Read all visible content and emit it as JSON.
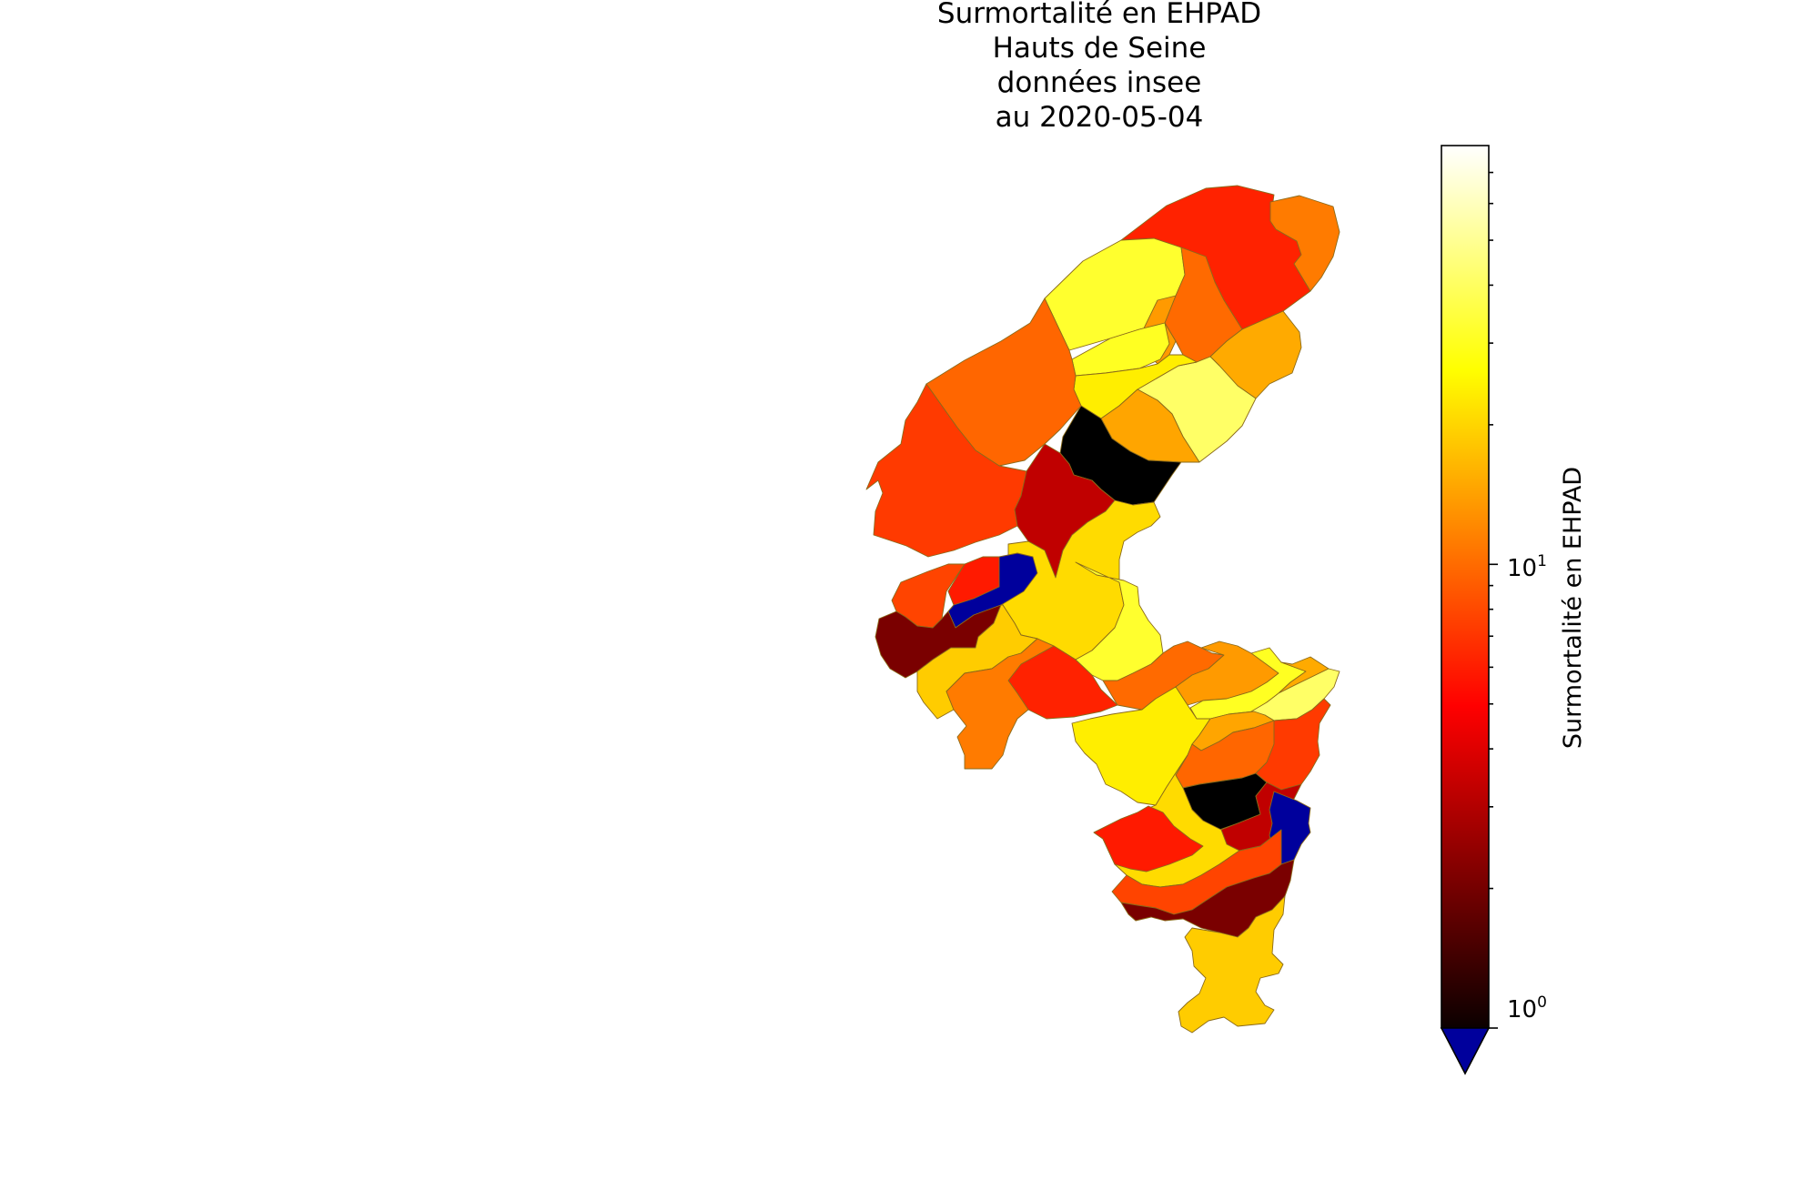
{
  "title": {
    "lines": [
      "Surmortalité en EHPAD",
      "Hauts de Seine",
      "données insee",
      "au 2020-05-04"
    ]
  },
  "colorbar": {
    "label": "Surmortalité en EHPAD",
    "colormap": "hot",
    "scale": "log",
    "range": [
      1,
      80
    ],
    "under_color": "#00009c",
    "ticks": [
      {
        "base": "10",
        "exp": "1",
        "value": 10
      },
      {
        "base": "10",
        "exp": "0",
        "value": 1
      }
    ]
  },
  "map": {
    "region_colors": [
      "#ff2200",
      "#ff7b00",
      "#ffff2e",
      "#ff6a00",
      "#ff9a00",
      "#ffff22",
      "#ffaa00",
      "#ffff66",
      "#ffee00",
      "#ffa500",
      "#ff6600",
      "#ff3a00",
      "#000000",
      "#c00000",
      "#ffdb00",
      "#ff1a00",
      "#00009c",
      "#ff4400",
      "#7a0000",
      "#ffcc00"
    ]
  }
}
